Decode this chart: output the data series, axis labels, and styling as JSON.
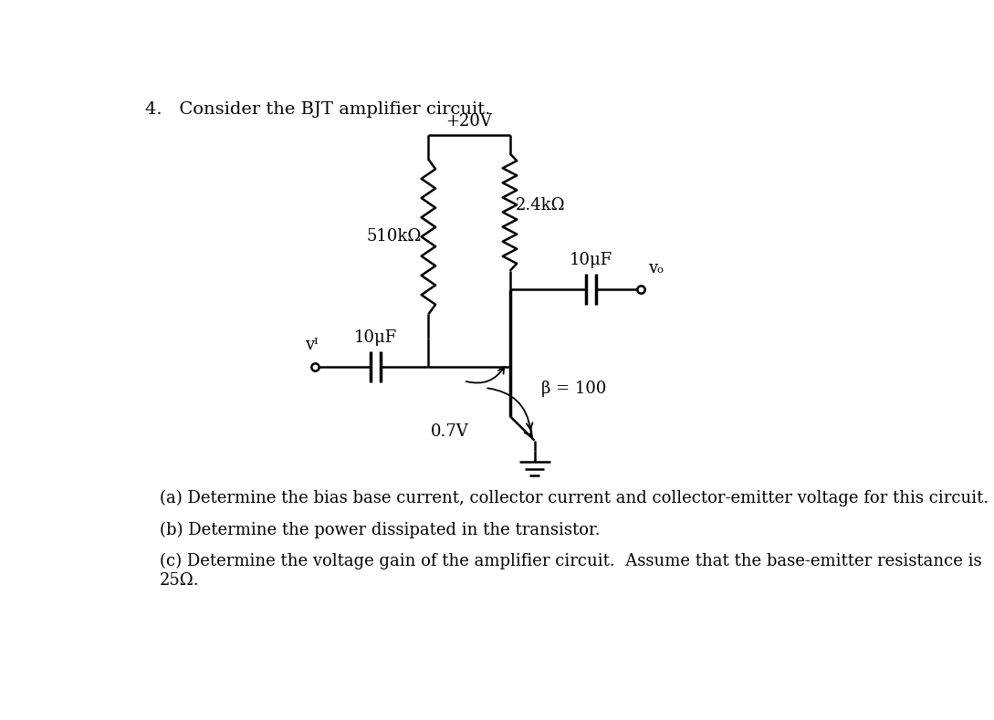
{
  "title": "4.   Consider the BJT amplifier circuit.",
  "question_a": "(a) Determine the bias base current, collector current and collector-emitter voltage for this circuit.",
  "question_b": "(b) Determine the power dissipated in the transistor.",
  "question_c": "(c) Determine the voltage gain of the amplifier circuit.  Assume that the base-emitter resistance is\n25Ω.",
  "label_vcc": "+20V",
  "label_r1": "510kΩ",
  "label_r2": "2.4kΩ",
  "label_c1": "10μF",
  "label_c2": "10μF",
  "label_vi": "vᴵ",
  "label_vo": "vₒ",
  "label_vbe": "0.7V",
  "label_beta": "β = 100",
  "bg_color": "#ffffff",
  "line_color": "#000000",
  "font_size_title": 14,
  "font_size_labels": 13,
  "font_size_questions": 13
}
